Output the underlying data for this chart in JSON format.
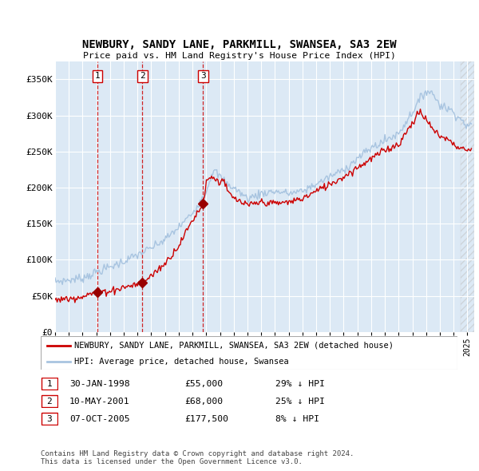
{
  "title": "NEWBURY, SANDY LANE, PARKMILL, SWANSEA, SA3 2EW",
  "subtitle": "Price paid vs. HM Land Registry's House Price Index (HPI)",
  "ylabel_ticks": [
    "£0",
    "£50K",
    "£100K",
    "£150K",
    "£200K",
    "£250K",
    "£300K",
    "£350K"
  ],
  "ytick_values": [
    0,
    50000,
    100000,
    150000,
    200000,
    250000,
    300000,
    350000
  ],
  "ylim": [
    0,
    375000
  ],
  "xlim_start": 1995.0,
  "xlim_end": 2025.5,
  "sales": [
    {
      "num": 1,
      "date_val": 1998.08,
      "price": 55000,
      "label": "1",
      "date_str": "30-JAN-1998",
      "price_str": "£55,000",
      "hpi_str": "29% ↓ HPI"
    },
    {
      "num": 2,
      "date_val": 2001.36,
      "price": 68000,
      "label": "2",
      "date_str": "10-MAY-2001",
      "price_str": "£68,000",
      "hpi_str": "25% ↓ HPI"
    },
    {
      "num": 3,
      "date_val": 2005.77,
      "price": 177500,
      "label": "3",
      "date_str": "07-OCT-2005",
      "price_str": "£177,500",
      "hpi_str": "8% ↓ HPI"
    }
  ],
  "hpi_line_color": "#a8c4e0",
  "sale_line_color": "#cc0000",
  "sale_dot_color": "#990000",
  "bg_color": "#dce9f5",
  "grid_color": "#ffffff",
  "legend_label_sale": "NEWBURY, SANDY LANE, PARKMILL, SWANSEA, SA3 2EW (detached house)",
  "legend_label_hpi": "HPI: Average price, detached house, Swansea",
  "footnote": "Contains HM Land Registry data © Crown copyright and database right 2024.\nThis data is licensed under the Open Government Licence v3.0.",
  "x_years": [
    1995,
    1996,
    1997,
    1998,
    1999,
    2000,
    2001,
    2002,
    2003,
    2004,
    2005,
    2006,
    2007,
    2008,
    2009,
    2010,
    2011,
    2012,
    2013,
    2014,
    2015,
    2016,
    2017,
    2018,
    2019,
    2020,
    2021,
    2022,
    2023,
    2024,
    2025
  ],
  "hpi_anchors_t": [
    1995,
    1996,
    1997,
    1998,
    1999,
    2000,
    2001,
    2002,
    2003,
    2004,
    2005,
    2006,
    2006.5,
    2007,
    2007.5,
    2008,
    2009,
    2009.5,
    2010,
    2011,
    2012,
    2013,
    2014,
    2015,
    2016,
    2017,
    2018,
    2019,
    2020,
    2021,
    2021.5,
    2022,
    2022.5,
    2023,
    2023.5,
    2024,
    2024.5,
    2025
  ],
  "hpi_anchors_v": [
    70000,
    72000,
    75000,
    83000,
    90000,
    98000,
    107000,
    116000,
    128000,
    145000,
    165000,
    195000,
    225000,
    215000,
    205000,
    200000,
    185000,
    188000,
    192000,
    195000,
    192000,
    195000,
    205000,
    215000,
    225000,
    240000,
    255000,
    265000,
    275000,
    305000,
    320000,
    335000,
    330000,
    315000,
    310000,
    305000,
    295000,
    285000
  ],
  "red_anchors_t": [
    1995,
    1996,
    1997,
    1998.08,
    1999,
    2000,
    2001.36,
    2002,
    2003,
    2004,
    2005,
    2005.77,
    2006,
    2006.5,
    2007,
    2007.3,
    2007.5,
    2008,
    2009,
    2010,
    2011,
    2012,
    2013,
    2014,
    2015,
    2016,
    2017,
    2018,
    2019,
    2020,
    2021,
    2021.5,
    2022,
    2022.5,
    2023,
    2023.5,
    2024,
    2024.5,
    2025
  ],
  "red_anchors_v": [
    45000,
    46000,
    50000,
    55000,
    57000,
    62000,
    68000,
    78000,
    95000,
    120000,
    155000,
    177500,
    210000,
    215000,
    207000,
    212000,
    195000,
    185000,
    175000,
    180000,
    178000,
    180000,
    185000,
    195000,
    205000,
    215000,
    228000,
    240000,
    252000,
    260000,
    290000,
    305000,
    295000,
    280000,
    272000,
    268000,
    260000,
    255000,
    252000
  ]
}
